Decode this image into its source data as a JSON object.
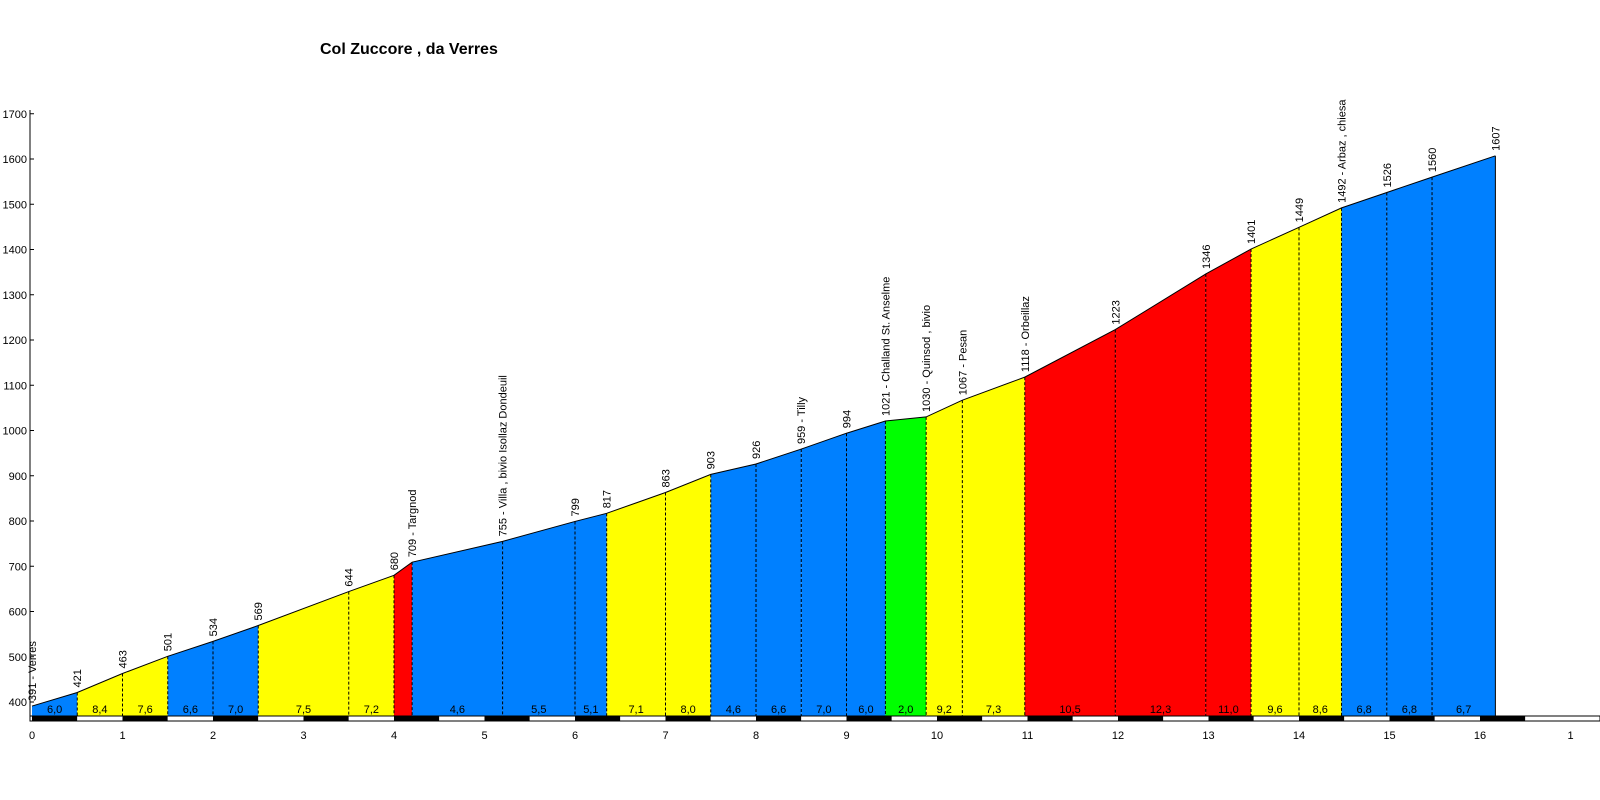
{
  "chart_data": {
    "type": "area",
    "title": "Col Zuccore , da Verres",
    "xlabel": "",
    "ylabel": "",
    "xlim": [
      0,
      17
    ],
    "ylim": [
      390,
      1700
    ],
    "x_ticks": [
      "0",
      "1",
      "2",
      "3",
      "4",
      "5",
      "6",
      "7",
      "8",
      "9",
      "10",
      "11",
      "12",
      "13",
      "14",
      "15",
      "16",
      "1"
    ],
    "y_ticks": [
      "400",
      "500",
      "600",
      "700",
      "800",
      "900",
      "1000",
      "1100",
      "1200",
      "1300",
      "1400",
      "1500",
      "1600",
      "1700"
    ],
    "grade_colors": {
      "blue": "#0080ff",
      "yellow": "#ffff00",
      "red": "#ff0000",
      "green": "#00ff00"
    },
    "profile": [
      {
        "x": 0.0,
        "y": 391
      },
      {
        "x": 0.5,
        "y": 421
      },
      {
        "x": 1.0,
        "y": 463
      },
      {
        "x": 1.5,
        "y": 501
      },
      {
        "x": 2.0,
        "y": 534
      },
      {
        "x": 2.5,
        "y": 569
      },
      {
        "x": 3.5,
        "y": 644
      },
      {
        "x": 4.0,
        "y": 680
      },
      {
        "x": 4.2,
        "y": 709
      },
      {
        "x": 5.2,
        "y": 755
      },
      {
        "x": 6.0,
        "y": 799
      },
      {
        "x": 6.35,
        "y": 817
      },
      {
        "x": 7.0,
        "y": 863
      },
      {
        "x": 7.5,
        "y": 903
      },
      {
        "x": 8.0,
        "y": 926
      },
      {
        "x": 8.5,
        "y": 959
      },
      {
        "x": 9.0,
        "y": 994
      },
      {
        "x": 9.43,
        "y": 1021
      },
      {
        "x": 9.88,
        "y": 1030
      },
      {
        "x": 10.28,
        "y": 1067
      },
      {
        "x": 10.97,
        "y": 1118
      },
      {
        "x": 11.97,
        "y": 1223
      },
      {
        "x": 12.97,
        "y": 1346
      },
      {
        "x": 13.47,
        "y": 1401
      },
      {
        "x": 14.0,
        "y": 1449
      },
      {
        "x": 14.47,
        "y": 1492
      },
      {
        "x": 14.97,
        "y": 1526
      },
      {
        "x": 15.47,
        "y": 1560
      },
      {
        "x": 16.17,
        "y": 1607
      }
    ],
    "segments": [
      {
        "grade": "6,0",
        "color": "blue"
      },
      {
        "grade": "8,4",
        "color": "yellow"
      },
      {
        "grade": "7,6",
        "color": "yellow"
      },
      {
        "grade": "6,6",
        "color": "blue"
      },
      {
        "grade": "7,0",
        "color": "blue"
      },
      {
        "grade": "7,5",
        "color": "yellow"
      },
      {
        "grade": "7,2",
        "color": "yellow"
      },
      {
        "grade": "",
        "color": "red"
      },
      {
        "grade": "4,6",
        "color": "blue"
      },
      {
        "grade": "5,5",
        "color": "blue"
      },
      {
        "grade": "5,1",
        "color": "blue"
      },
      {
        "grade": "7,1",
        "color": "yellow"
      },
      {
        "grade": "8,0",
        "color": "yellow"
      },
      {
        "grade": "4,6",
        "color": "blue"
      },
      {
        "grade": "6,6",
        "color": "blue"
      },
      {
        "grade": "7,0",
        "color": "blue"
      },
      {
        "grade": "6,0",
        "color": "blue"
      },
      {
        "grade": "2,0",
        "color": "green"
      },
      {
        "grade": "9,2",
        "color": "yellow"
      },
      {
        "grade": "7,3",
        "color": "yellow"
      },
      {
        "grade": "10,5",
        "color": "red"
      },
      {
        "grade": "12,3",
        "color": "red"
      },
      {
        "grade": "11,0",
        "color": "red"
      },
      {
        "grade": "9,6",
        "color": "yellow"
      },
      {
        "grade": "8,6",
        "color": "yellow"
      },
      {
        "grade": "6,8",
        "color": "blue"
      },
      {
        "grade": "6,8",
        "color": "blue"
      },
      {
        "grade": "6,7",
        "color": "blue"
      }
    ],
    "point_labels": [
      "391 - Verres",
      "421",
      "463",
      "501",
      "534",
      "569",
      "644",
      "680",
      "709 - Targnod",
      "755 - Villa , bivio Isollaz Dondeuil",
      "799",
      "817",
      "863",
      "903",
      "926",
      "959 - Tilly",
      "994",
      "1021 - Challand St. Anselme",
      "1030 - Quinsod , bivio",
      "1067 - Pesan",
      "1118 - Orbeillaz",
      "1223",
      "1346",
      "1401",
      "1449",
      "1492 - Arbaz , chiesa",
      "1526",
      "1560",
      "1607"
    ],
    "grid": false,
    "legend": "none"
  }
}
